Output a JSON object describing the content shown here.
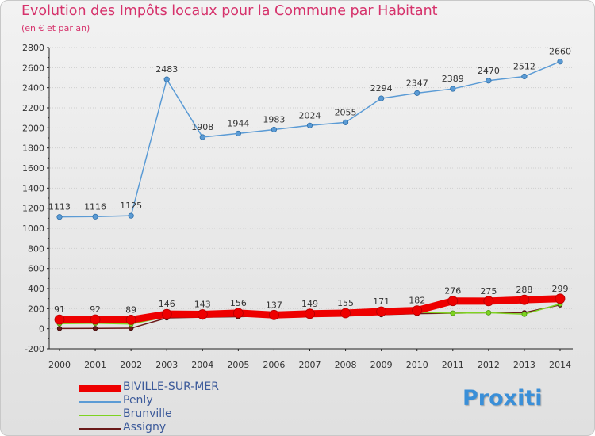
{
  "header": {
    "title": "Evolution des Impôts locaux pour la Commune par Habitant",
    "subtitle": "(en € et par an)"
  },
  "brand": {
    "name": "Proxiti"
  },
  "colors": {
    "title": "#d6336c",
    "axis": "#222222",
    "grid": "#cfcfcf",
    "legend_text": "#3c5a9a"
  },
  "chart_data": {
    "type": "line",
    "title": "Evolution des Impôts locaux pour la Commune par Habitant",
    "subtitle": "(en € et par an)",
    "xlabel": "",
    "ylabel": "",
    "categories": [
      "2000",
      "2001",
      "2002",
      "2003",
      "2004",
      "2005",
      "2006",
      "2007",
      "2008",
      "2009",
      "2010",
      "2011",
      "2012",
      "2013",
      "2014"
    ],
    "ylim": [
      -200,
      2800
    ],
    "yticks": [
      -200,
      0,
      200,
      400,
      600,
      800,
      1000,
      1200,
      1400,
      1600,
      1800,
      2000,
      2200,
      2400,
      2600,
      2800
    ],
    "grid": "horizontal",
    "legend_position": "bottom-left",
    "series": [
      {
        "name": "BIVILLE-SUR-MER",
        "color": "#ee0000",
        "values": [
          91,
          92,
          89,
          146,
          143,
          156,
          137,
          149,
          155,
          171,
          182,
          276,
          275,
          288,
          299
        ],
        "labels_shown": true
      },
      {
        "name": "Penly",
        "color": "#5b9bd5",
        "values": [
          1113,
          1116,
          1125,
          2483,
          1908,
          1944,
          1983,
          2024,
          2055,
          2294,
          2347,
          2389,
          2470,
          2512,
          2660
        ],
        "labels_shown": true
      },
      {
        "name": "Brunville",
        "color": "#7ed321",
        "values": [
          51,
          55,
          47,
          120,
          118,
          133,
          126,
          144,
          139,
          163,
          165,
          155,
          160,
          145,
          247
        ],
        "labels_shown": false
      },
      {
        "name": "Assigny",
        "color": "#6b1a1a",
        "values": [
          2,
          3,
          5,
          108,
          115,
          120,
          130,
          135,
          150,
          140,
          150,
          155,
          160,
          160,
          237
        ],
        "labels_shown": false
      }
    ]
  }
}
